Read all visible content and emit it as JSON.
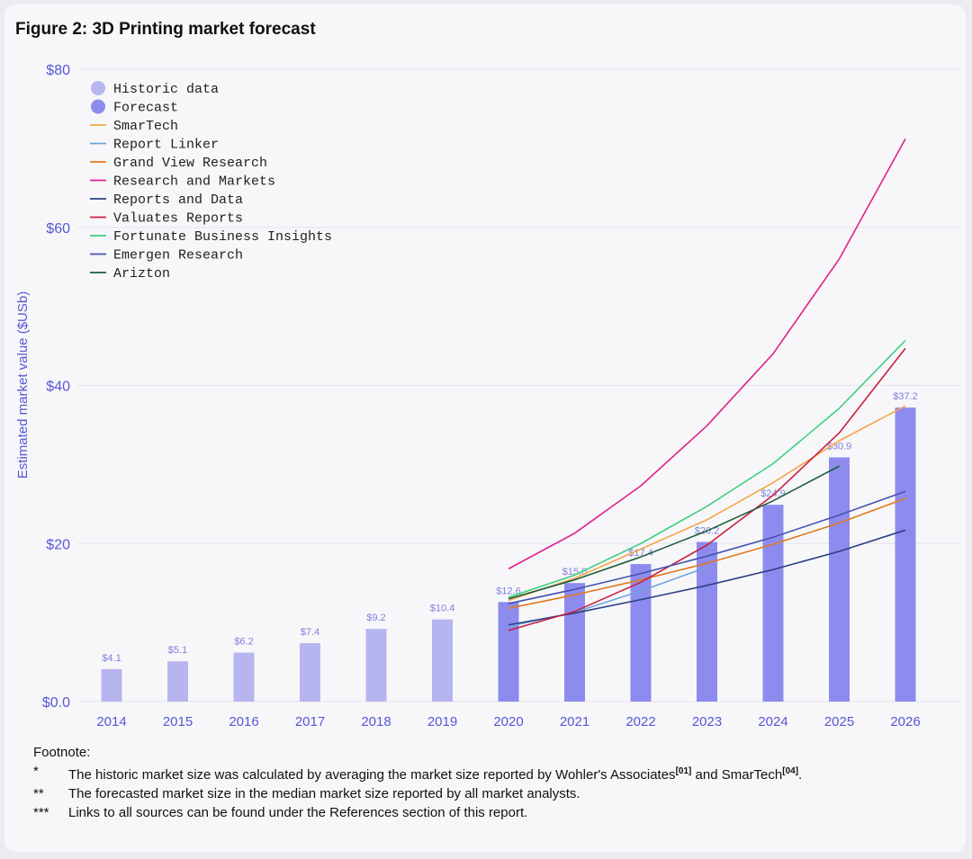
{
  "title": "Figure 2: 3D Printing market forecast",
  "chart_data": {
    "type": "bar",
    "title": "Figure 2: 3D Printing market forecast",
    "ylabel": "Estimated market value ($USb)",
    "ylim": [
      0,
      80
    ],
    "yticks": [
      0,
      20,
      40,
      60,
      80
    ],
    "ytick_labels": [
      "$0.0",
      "$20",
      "$40",
      "$60",
      "$80"
    ],
    "categories": [
      "2014",
      "2015",
      "2016",
      "2017",
      "2018",
      "2019",
      "2020",
      "2021",
      "2022",
      "2023",
      "2024",
      "2025",
      "2026"
    ],
    "bar_series": [
      {
        "name": "Historic data",
        "color": "#b7b5ef",
        "x": [
          "2014",
          "2015",
          "2016",
          "2017",
          "2018",
          "2019"
        ],
        "values": [
          4.1,
          5.1,
          6.2,
          7.4,
          9.2,
          10.4
        ],
        "labels": [
          "$4.1",
          "$5.1",
          "$6.2",
          "$7.4",
          "$9.2",
          "$10.4"
        ]
      },
      {
        "name": "Forecast",
        "color": "#8d8cee",
        "x": [
          "2020",
          "2021",
          "2022",
          "2023",
          "2024",
          "2025",
          "2026"
        ],
        "values": [
          12.6,
          15.0,
          17.4,
          20.2,
          24.9,
          30.9,
          37.2
        ],
        "labels": [
          "$12.6",
          "$15.0",
          "$17.4",
          "$20.2",
          "$24.9",
          "$30.9",
          "$37.2"
        ]
      }
    ],
    "line_series": [
      {
        "name": "SmarTech",
        "color": "#f5a54a",
        "x": [
          "2020",
          "2021",
          "2022",
          "2023",
          "2024",
          "2025",
          "2026"
        ],
        "values": [
          12.8,
          15.6,
          19.3,
          23.0,
          27.7,
          33.0,
          37.4
        ]
      },
      {
        "name": "Report Linker",
        "color": "#6fa3de",
        "x": [
          "2020",
          "2021",
          "2022",
          "2023"
        ],
        "values": [
          9.5,
          11.3,
          14.0,
          17.0
        ]
      },
      {
        "name": "Grand View Research",
        "color": "#e07a1f",
        "x": [
          "2020",
          "2021",
          "2022",
          "2023",
          "2024",
          "2025",
          "2026"
        ],
        "values": [
          11.8,
          13.5,
          15.4,
          17.5,
          19.9,
          22.6,
          25.7
        ]
      },
      {
        "name": "Research and Markets",
        "color": "#e0218a",
        "x": [
          "2020",
          "2021",
          "2022",
          "2023",
          "2024",
          "2025",
          "2026"
        ],
        "values": [
          16.8,
          21.3,
          27.3,
          34.9,
          44.0,
          56.0,
          71.2
        ]
      },
      {
        "name": "Reports and Data",
        "color": "#2c3f86",
        "x": [
          "2020",
          "2021",
          "2022",
          "2023",
          "2024",
          "2025",
          "2026"
        ],
        "values": [
          9.7,
          11.2,
          12.9,
          14.7,
          16.7,
          19.0,
          21.7
        ]
      },
      {
        "name": "Valuates Reports",
        "color": "#c8203d",
        "x": [
          "2020",
          "2021",
          "2022",
          "2023",
          "2024",
          "2025",
          "2026"
        ],
        "values": [
          9.0,
          11.4,
          15.1,
          19.8,
          26.1,
          34.0,
          44.7
        ]
      },
      {
        "name": "Fortunate Business Insights",
        "color": "#3fcf7f",
        "x": [
          "2020",
          "2021",
          "2022",
          "2023",
          "2024",
          "2025",
          "2026"
        ],
        "values": [
          13.2,
          16.0,
          20.0,
          24.7,
          30.1,
          37.1,
          45.7
        ]
      },
      {
        "name": "Emergen Research",
        "color": "#4452b0",
        "x": [
          "2020",
          "2021",
          "2022",
          "2023",
          "2024",
          "2025",
          "2026"
        ],
        "values": [
          12.4,
          14.2,
          16.2,
          18.4,
          20.8,
          23.6,
          26.6
        ]
      },
      {
        "name": "Arizton",
        "color": "#1d5e3b",
        "x": [
          "2020",
          "2021",
          "2022",
          "2023",
          "2024",
          "2025"
        ],
        "values": [
          13.0,
          15.4,
          18.3,
          21.6,
          25.4,
          29.8
        ]
      }
    ],
    "legend": [
      {
        "name": "Historic data",
        "kind": "dot",
        "color": "#b7b5ef"
      },
      {
        "name": "Forecast",
        "kind": "dot",
        "color": "#8d8cee"
      },
      {
        "name": "SmarTech",
        "kind": "line",
        "color": "#f5a54a"
      },
      {
        "name": "Report Linker",
        "kind": "line",
        "color": "#6fa3de"
      },
      {
        "name": "Grand View Research",
        "kind": "line",
        "color": "#e07a1f"
      },
      {
        "name": "Research and Markets",
        "kind": "line",
        "color": "#e0218a"
      },
      {
        "name": "Reports and Data",
        "kind": "line",
        "color": "#2c3f86"
      },
      {
        "name": "Valuates Reports",
        "kind": "line",
        "color": "#c8203d"
      },
      {
        "name": "Fortunate Business Insights",
        "kind": "line",
        "color": "#3fcf7f"
      },
      {
        "name": "Emergen Research",
        "kind": "line",
        "color": "#4452b0"
      },
      {
        "name": "Arizton",
        "kind": "line",
        "color": "#1d5e3b"
      }
    ],
    "legend_position": "top-left",
    "grid": true
  },
  "footnote": {
    "heading": "Footnote:",
    "notes": [
      {
        "mark": "*",
        "text_1": "The historic market size was calculated by averaging the market size reported by Wohler's Associates",
        "ref_1": "[01]",
        "text_2": " and SmarTech",
        "ref_2": "[04]",
        "text_3": "."
      },
      {
        "mark": "**",
        "text": "The forecasted market size in the median market size reported by all market analysts."
      },
      {
        "mark": "***",
        "text": "Links to all sources can be found under the References section of this report."
      }
    ]
  }
}
